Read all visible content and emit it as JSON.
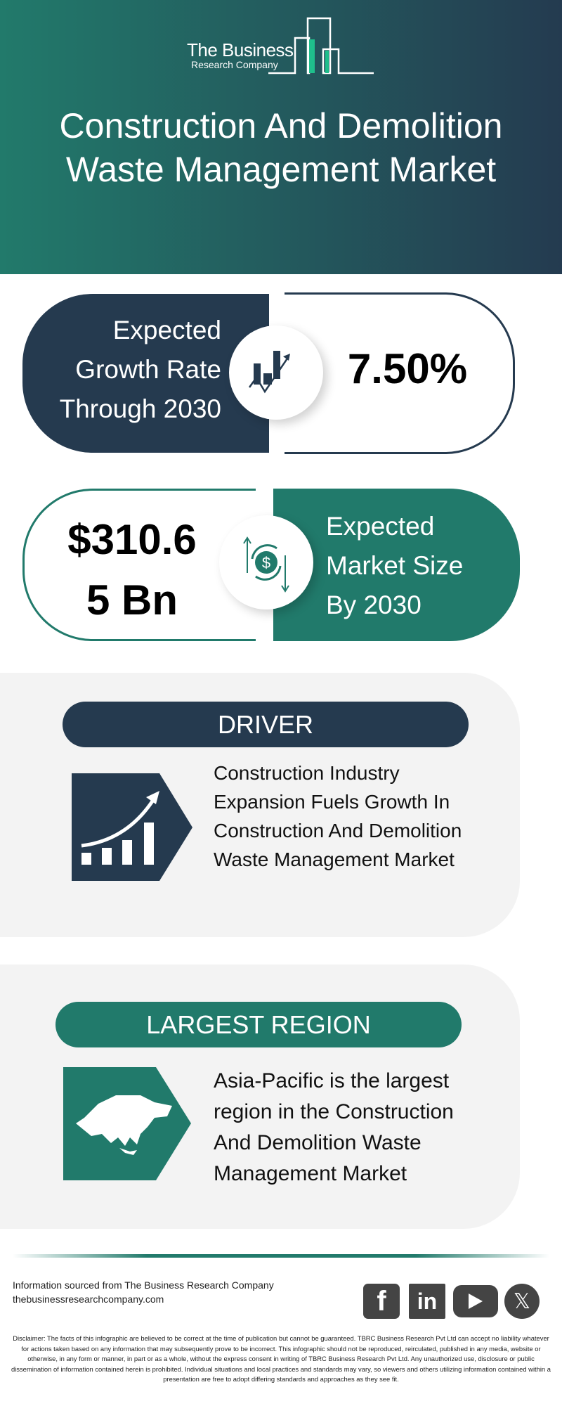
{
  "logo": {
    "line1": "The Business",
    "line2": "Research Company"
  },
  "title": {
    "line1": "Construction And Demolition",
    "line2": "Waste Management Market"
  },
  "growth": {
    "label_lines": [
      "Expected",
      "Growth Rate",
      "Through 2030"
    ],
    "value": "7.50%",
    "icon": "growth-chart-icon"
  },
  "market_size": {
    "value_lines": [
      "$310.6",
      "5 Bn"
    ],
    "label_lines": [
      "Expected",
      "Market Size",
      "By 2030"
    ],
    "icon": "dollar-cycle-icon"
  },
  "driver": {
    "heading": "DRIVER",
    "text_lines": [
      "Construction Industry",
      "Expansion Fuels Growth In",
      "Construction And Demolition",
      "Waste Management Market"
    ],
    "icon": "rising-bar-chart-icon"
  },
  "region": {
    "heading": "LARGEST REGION",
    "text_lines": [
      "Asia-Pacific is the largest",
      "region in the Construction",
      "And Demolition Waste",
      "Management Market"
    ],
    "icon": "asia-map-icon"
  },
  "footer": {
    "source": "Information sourced from The Business Research Company",
    "website": "thebusinessresearchcompany.com",
    "social": [
      "facebook",
      "linkedin",
      "youtube",
      "x"
    ],
    "disclaimer": "Disclaimer: The facts of this infographic are believed to be correct at the time of publication but cannot be guaranteed. TBRC Business Research Pvt Ltd can accept no liability whatever for actions taken based on any information that may subsequently prove to be incorrect. This infographic should not be reproduced, reirculated, published in any media, website or otherwise, in any form or manner, in part or as a whole, without the express consent in writing of TBRC Business Research Pvt Ltd. Any unauthorized use, disclosure or public dissemination of information contained herein is prohibited. Individual situations and local practices and standards may vary, so viewers and others utilizing information contained within a presentation are free to adopt differing standards and approaches as they see fit."
  },
  "colors": {
    "navy": "#253a4f",
    "teal": "#217a6b",
    "section_bg": "#f3f3f3"
  }
}
